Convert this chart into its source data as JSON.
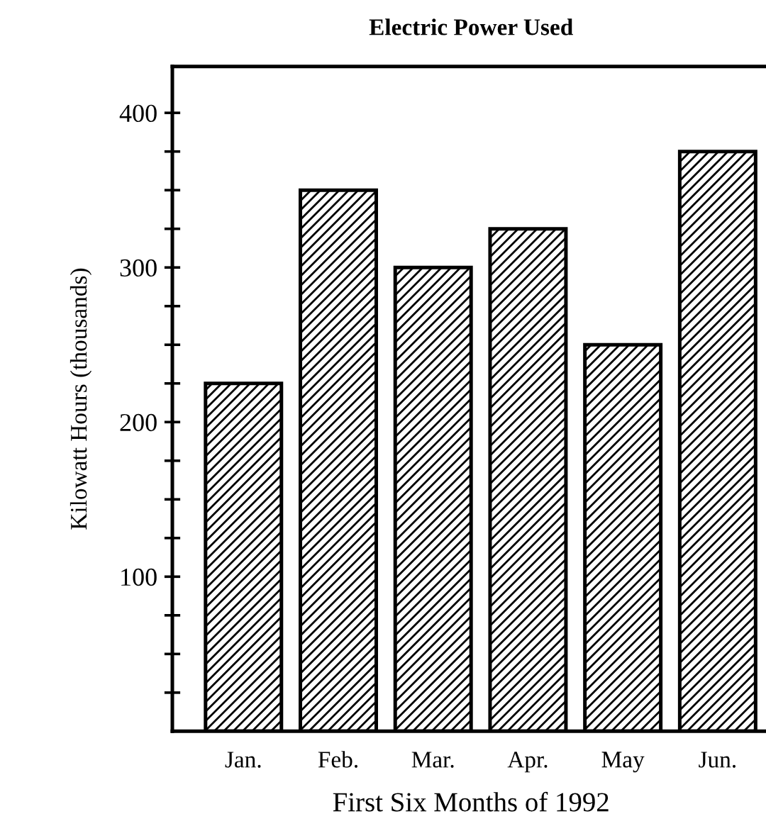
{
  "chart_data": {
    "type": "bar",
    "title": "Electric Power Used",
    "xlabel": "First Six Months of 1992",
    "ylabel": "Kilowatt Hours (thousands)",
    "categories": [
      "Jan.",
      "Feb.",
      "Mar.",
      "Apr.",
      "May",
      "Jun."
    ],
    "values": [
      225,
      350,
      300,
      325,
      250,
      375
    ],
    "color": "#000000",
    "ylim": [
      0,
      430
    ],
    "yticks": [
      {
        "value": 25,
        "label": null
      },
      {
        "value": 50,
        "label": null
      },
      {
        "value": 75,
        "label": null
      },
      100,
      {
        "value": 125,
        "label": null
      },
      {
        "value": 150,
        "label": null
      },
      {
        "value": 175,
        "label": null
      },
      200,
      {
        "value": 225,
        "label": null
      },
      {
        "value": 250,
        "label": null
      },
      {
        "value": 275,
        "label": null
      },
      300,
      {
        "value": 325,
        "label": null
      },
      {
        "value": 350,
        "label": null
      },
      {
        "value": 375,
        "label": null
      },
      400
    ],
    "grid": false
  }
}
